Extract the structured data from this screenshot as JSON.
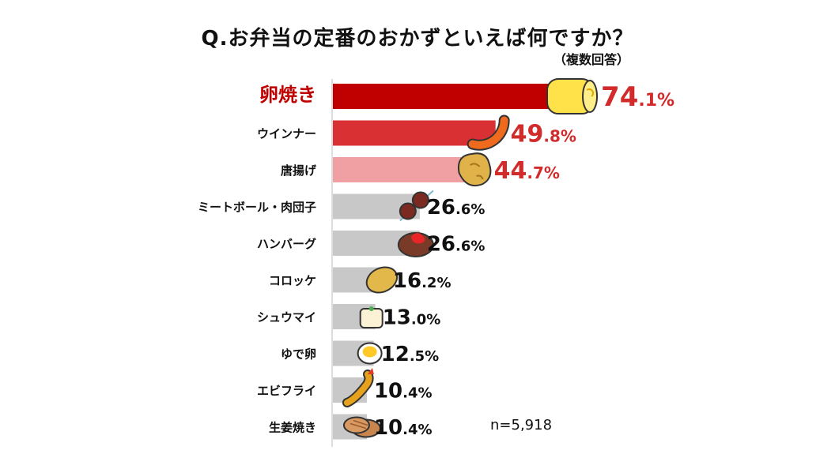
{
  "chart_data": {
    "type": "bar",
    "orientation": "horizontal",
    "title": "Q.お弁当の定番のおかずといえば何ですか？",
    "subtitle": "（複数回答）",
    "categories": [
      "卵焼き",
      "ウインナー",
      "唐揚げ",
      "ミートボール・肉団子",
      "ハンバーグ",
      "コロッケ",
      "シュウマイ",
      "ゆで卵",
      "エビフライ",
      "生姜焼き"
    ],
    "values": [
      74.1,
      49.8,
      44.7,
      26.6,
      26.6,
      16.2,
      13.0,
      12.5,
      10.4,
      10.4
    ],
    "value_labels": [
      {
        "int": "74",
        "dec": ".1%"
      },
      {
        "int": "49",
        "dec": ".8%"
      },
      {
        "int": "44",
        "dec": ".7%"
      },
      {
        "int": "26",
        "dec": ".6%"
      },
      {
        "int": "26",
        "dec": ".6%"
      },
      {
        "int": "16",
        "dec": ".2%"
      },
      {
        "int": "13",
        "dec": ".0%"
      },
      {
        "int": "12",
        "dec": ".5%"
      },
      {
        "int": "10",
        "dec": ".4%"
      },
      {
        "int": "10",
        "dec": ".4%"
      }
    ],
    "bar_colors": [
      "#c00000",
      "#d93033",
      "#f0a0a3",
      "#c8c8c8",
      "#c8c8c8",
      "#c8c8c8",
      "#c8c8c8",
      "#c8c8c8",
      "#c8c8c8",
      "#c8c8c8"
    ],
    "label_colors": [
      "#d22b2b",
      "#d22b2b",
      "#d22b2b",
      "#111111",
      "#111111",
      "#111111",
      "#111111",
      "#111111",
      "#111111",
      "#111111"
    ],
    "icons": [
      "tamagoyaki-icon",
      "sausage-icon",
      "karaage-icon",
      "meatball-skewer-icon",
      "hamburg-steak-icon",
      "croquette-icon",
      "shumai-icon",
      "boiled-egg-icon",
      "fried-shrimp-icon",
      "ginger-pork-icon"
    ],
    "xlim": [
      0,
      100
    ],
    "grid": false,
    "legend": "none"
  },
  "sample_note": "n=5,918"
}
